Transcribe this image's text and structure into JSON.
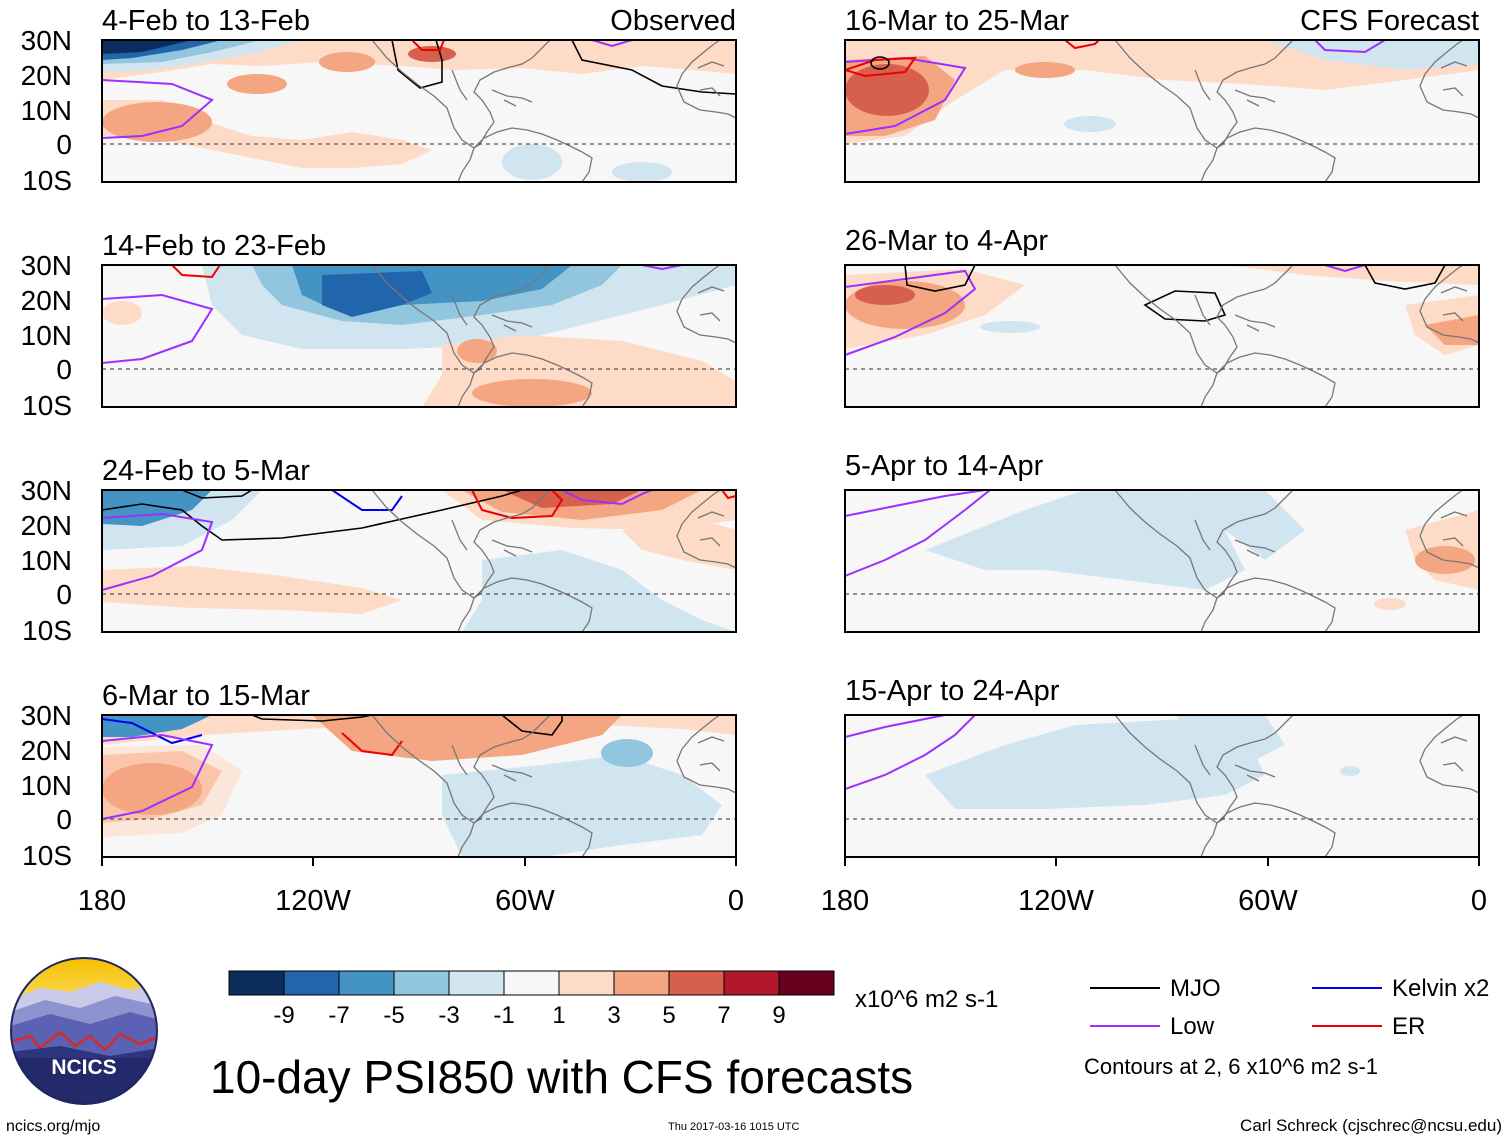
{
  "header": {
    "observed_label": "Observed",
    "forecast_label": "CFS Forecast"
  },
  "panels": {
    "observed": [
      {
        "title": "4-Feb to 13-Feb"
      },
      {
        "title": "14-Feb to 23-Feb"
      },
      {
        "title": "24-Feb to 5-Mar"
      },
      {
        "title": "6-Mar to 15-Mar"
      }
    ],
    "forecast": [
      {
        "title": "16-Mar to 25-Mar"
      },
      {
        "title": "26-Mar to 4-Apr"
      },
      {
        "title": "5-Apr to 14-Apr"
      },
      {
        "title": "15-Apr to 24-Apr"
      }
    ]
  },
  "axes": {
    "lat_ticks": [
      "30N",
      "20N",
      "10N",
      "0",
      "10S"
    ],
    "lon_ticks": [
      "180",
      "120W",
      "60W",
      "0"
    ]
  },
  "colorbar": {
    "labels": [
      "-9",
      "-7",
      "-5",
      "-3",
      "-1",
      "1",
      "3",
      "5",
      "7",
      "9"
    ],
    "colors": [
      "#0a2d5e",
      "#2166ac",
      "#4393c3",
      "#92c5de",
      "#d1e5f0",
      "#f7f7f7",
      "#fddbc7",
      "#f4a582",
      "#d6604d",
      "#b2182b",
      "#67001f"
    ],
    "units": "x10^6 m2 s-1"
  },
  "legend": {
    "items": [
      {
        "label": "MJO",
        "color": "#000000"
      },
      {
        "label": "Low",
        "color": "#9b30ff"
      },
      {
        "label": "Kelvin x2",
        "color": "#0000ee"
      },
      {
        "label": "ER",
        "color": "#ee0000"
      }
    ],
    "note": "Contours at 2, 6 x10^6 m2 s-1"
  },
  "logo": {
    "text": "NCICS"
  },
  "title": "10-day PSI850 with CFS forecasts",
  "footer": {
    "left": "ncics.org/mjo",
    "center": "Thu 2017-03-16 1015 UTC",
    "right": "Carl Schreck (cjschrec@ncsu.edu)"
  }
}
